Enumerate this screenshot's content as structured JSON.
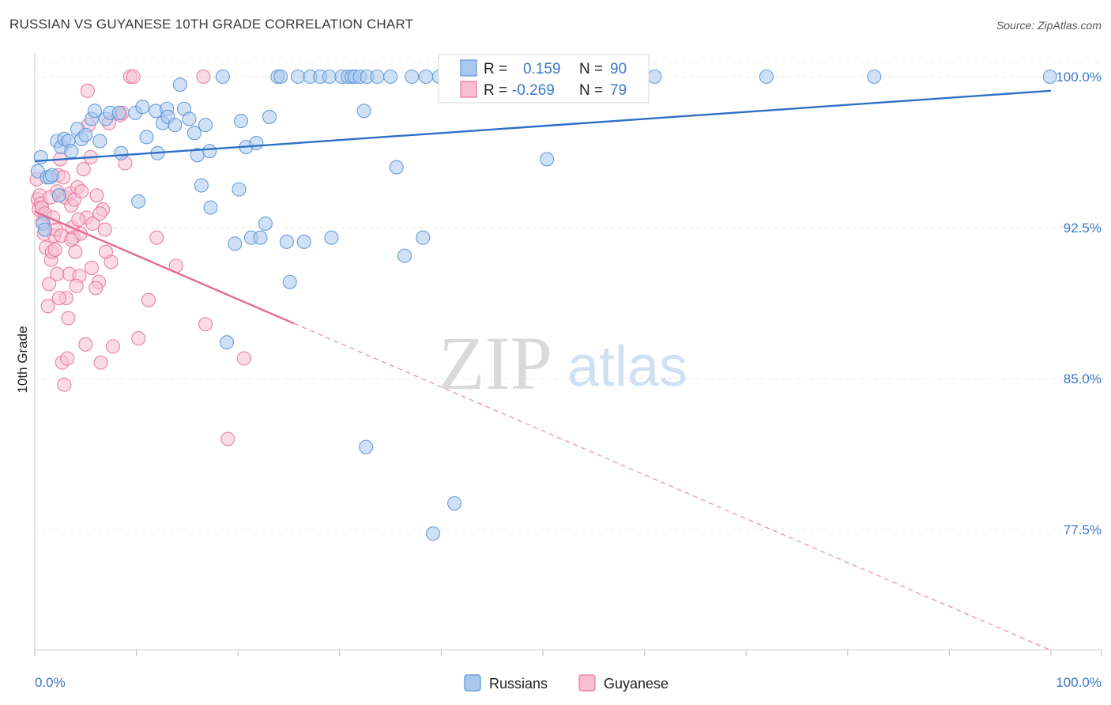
{
  "title": "RUSSIAN VS GUYANESE 10TH GRADE CORRELATION CHART",
  "source": "Source: ZipAtlas.com",
  "watermark": {
    "zip": "ZIP",
    "atlas": "atlas"
  },
  "chart_data": {
    "type": "scatter",
    "title": "RUSSIAN VS GUYANESE 10TH GRADE CORRELATION CHART",
    "ylabel": "10th Grade",
    "xlabel": "",
    "x_tick_labels": {
      "left": "0.0%",
      "right": "100.0%"
    },
    "y_ticks": [
      {
        "value": 100.0,
        "label": "100.0%"
      },
      {
        "value": 92.5,
        "label": "92.5%"
      },
      {
        "value": 85.0,
        "label": "85.0%"
      },
      {
        "value": 77.5,
        "label": "77.5%"
      }
    ],
    "xlim": [
      0,
      100
    ],
    "ylim": [
      70.8,
      101.2
    ],
    "grid": "horizontal dashed",
    "legend_top": {
      "rows": [
        {
          "r_label": "R =",
          "r_value": "0.159",
          "n_label": "N =",
          "n_value": "90"
        },
        {
          "r_label": "R =",
          "r_value": "-0.269",
          "n_label": "N =",
          "n_value": "79"
        }
      ]
    },
    "series": [
      {
        "name": "Russians",
        "color": "#5b93d6",
        "fill": "#a9c8ee",
        "trend": {
          "x0": 0,
          "y0": 95.8,
          "x1": 100,
          "y1": 99.3,
          "dashed_from": null
        },
        "points": [
          [
            0.3,
            95.3
          ],
          [
            0.6,
            96.0
          ],
          [
            0.8,
            92.7
          ],
          [
            1.0,
            92.4
          ],
          [
            1.2,
            95.0
          ],
          [
            1.5,
            95.0
          ],
          [
            1.7,
            95.1
          ],
          [
            2.2,
            96.8
          ],
          [
            2.4,
            94.1
          ],
          [
            2.6,
            96.5
          ],
          [
            2.9,
            96.9
          ],
          [
            3.3,
            96.8
          ],
          [
            3.6,
            96.3
          ],
          [
            4.2,
            97.4
          ],
          [
            4.6,
            96.9
          ],
          [
            5.0,
            97.1
          ],
          [
            5.6,
            97.9
          ],
          [
            5.9,
            98.3
          ],
          [
            6.4,
            96.8
          ],
          [
            7.0,
            97.9
          ],
          [
            7.4,
            98.2
          ],
          [
            8.3,
            98.2
          ],
          [
            8.5,
            96.2
          ],
          [
            9.9,
            98.2
          ],
          [
            10.2,
            93.8
          ],
          [
            10.6,
            98.5
          ],
          [
            11.0,
            97.0
          ],
          [
            11.9,
            98.3
          ],
          [
            12.1,
            96.2
          ],
          [
            12.6,
            97.7
          ],
          [
            13.0,
            98.4
          ],
          [
            13.1,
            98.0
          ],
          [
            13.8,
            97.6
          ],
          [
            14.3,
            99.6
          ],
          [
            14.7,
            98.4
          ],
          [
            15.2,
            97.9
          ],
          [
            15.7,
            97.2
          ],
          [
            16.0,
            96.1
          ],
          [
            16.4,
            94.6
          ],
          [
            16.8,
            97.6
          ],
          [
            17.2,
            96.3
          ],
          [
            17.3,
            93.5
          ],
          [
            18.5,
            100.0
          ],
          [
            18.9,
            86.8
          ],
          [
            19.7,
            91.7
          ],
          [
            20.1,
            94.4
          ],
          [
            20.3,
            97.8
          ],
          [
            20.8,
            96.5
          ],
          [
            21.3,
            92.0
          ],
          [
            21.8,
            96.7
          ],
          [
            22.2,
            92.0
          ],
          [
            22.7,
            92.7
          ],
          [
            23.1,
            98.0
          ],
          [
            23.9,
            100.0
          ],
          [
            24.2,
            100.0
          ],
          [
            24.8,
            91.8
          ],
          [
            25.1,
            89.8
          ],
          [
            25.9,
            100.0
          ],
          [
            26.5,
            91.8
          ],
          [
            27.1,
            100.0
          ],
          [
            28.1,
            100.0
          ],
          [
            29.0,
            100.0
          ],
          [
            29.2,
            92.0
          ],
          [
            30.2,
            100.0
          ],
          [
            30.8,
            100.0
          ],
          [
            31.2,
            100.0
          ],
          [
            31.5,
            100.0
          ],
          [
            32.0,
            100.0
          ],
          [
            32.4,
            98.3
          ],
          [
            32.7,
            100.0
          ],
          [
            32.6,
            81.6
          ],
          [
            33.7,
            100.0
          ],
          [
            35.0,
            100.0
          ],
          [
            35.6,
            95.5
          ],
          [
            36.4,
            91.1
          ],
          [
            37.1,
            100.0
          ],
          [
            38.2,
            92.0
          ],
          [
            38.5,
            100.0
          ],
          [
            39.2,
            77.3
          ],
          [
            39.8,
            100.0
          ],
          [
            41.0,
            100.0
          ],
          [
            41.3,
            78.8
          ],
          [
            47.4,
            100.0
          ],
          [
            50.4,
            95.9
          ],
          [
            51.2,
            100.0
          ],
          [
            57.0,
            100.0
          ],
          [
            61.0,
            100.0
          ],
          [
            72.0,
            100.0
          ],
          [
            82.6,
            100.0
          ],
          [
            99.9,
            100.0
          ]
        ]
      },
      {
        "name": "Guyanese",
        "color": "#e8749a",
        "fill": "#f7bfd1",
        "trend": {
          "x0": 0,
          "y0": 93.3,
          "x1": 100,
          "y1": 71.5,
          "solid_until": 25.5
        },
        "points": [
          [
            0.2,
            94.9
          ],
          [
            0.3,
            93.9
          ],
          [
            0.4,
            93.4
          ],
          [
            0.5,
            94.1
          ],
          [
            0.6,
            93.7
          ],
          [
            0.7,
            93.5
          ],
          [
            0.8,
            92.8
          ],
          [
            1.0,
            93.2
          ],
          [
            1.1,
            91.5
          ],
          [
            1.3,
            88.6
          ],
          [
            1.4,
            89.7
          ],
          [
            1.6,
            90.9
          ],
          [
            1.7,
            91.3
          ],
          [
            1.9,
            92.1
          ],
          [
            2.0,
            91.4
          ],
          [
            2.1,
            92.4
          ],
          [
            2.2,
            94.3
          ],
          [
            2.3,
            95.1
          ],
          [
            2.4,
            94.1
          ],
          [
            2.5,
            95.9
          ],
          [
            2.6,
            92.1
          ],
          [
            2.7,
            85.8
          ],
          [
            2.9,
            84.7
          ],
          [
            3.0,
            94.0
          ],
          [
            3.1,
            89.0
          ],
          [
            3.2,
            86.0
          ],
          [
            3.4,
            90.2
          ],
          [
            3.5,
            94.2
          ],
          [
            3.6,
            93.6
          ],
          [
            3.7,
            92.5
          ],
          [
            3.8,
            92.0
          ],
          [
            3.9,
            93.9
          ],
          [
            4.0,
            91.3
          ],
          [
            4.2,
            94.5
          ],
          [
            4.4,
            90.1
          ],
          [
            4.5,
            92.2
          ],
          [
            4.6,
            94.3
          ],
          [
            4.8,
            95.4
          ],
          [
            5.0,
            86.7
          ],
          [
            5.1,
            93.0
          ],
          [
            5.2,
            99.3
          ],
          [
            5.3,
            97.6
          ],
          [
            5.6,
            90.5
          ],
          [
            5.7,
            92.7
          ],
          [
            6.1,
            94.1
          ],
          [
            6.3,
            89.8
          ],
          [
            6.5,
            85.8
          ],
          [
            6.7,
            93.4
          ],
          [
            6.9,
            92.4
          ],
          [
            7.3,
            97.7
          ],
          [
            7.5,
            90.8
          ],
          [
            7.7,
            86.6
          ],
          [
            8.4,
            98.1
          ],
          [
            8.6,
            98.2
          ],
          [
            8.9,
            95.7
          ],
          [
            9.4,
            100.0
          ],
          [
            9.7,
            100.0
          ],
          [
            10.2,
            87.0
          ],
          [
            11.2,
            88.9
          ],
          [
            12.0,
            92.0
          ],
          [
            13.9,
            90.6
          ],
          [
            16.6,
            100.0
          ],
          [
            16.8,
            87.7
          ],
          [
            19.0,
            82.0
          ],
          [
            20.6,
            86.0
          ],
          [
            2.2,
            90.2
          ],
          [
            3.3,
            88.0
          ],
          [
            4.1,
            89.6
          ],
          [
            6.0,
            89.5
          ],
          [
            7.0,
            91.3
          ],
          [
            1.5,
            94.0
          ],
          [
            2.8,
            95.0
          ],
          [
            5.5,
            96.0
          ],
          [
            4.3,
            92.9
          ],
          [
            3.6,
            91.9
          ],
          [
            1.8,
            93.0
          ],
          [
            0.9,
            92.2
          ],
          [
            6.4,
            93.2
          ],
          [
            2.4,
            89.0
          ]
        ]
      }
    ]
  },
  "legend_bottom": [
    {
      "label": "Russians",
      "color": "#a9c8ee",
      "stroke": "#5b93d6"
    },
    {
      "label": "Guyanese",
      "color": "#f7bfd1",
      "stroke": "#e8749a"
    }
  ]
}
